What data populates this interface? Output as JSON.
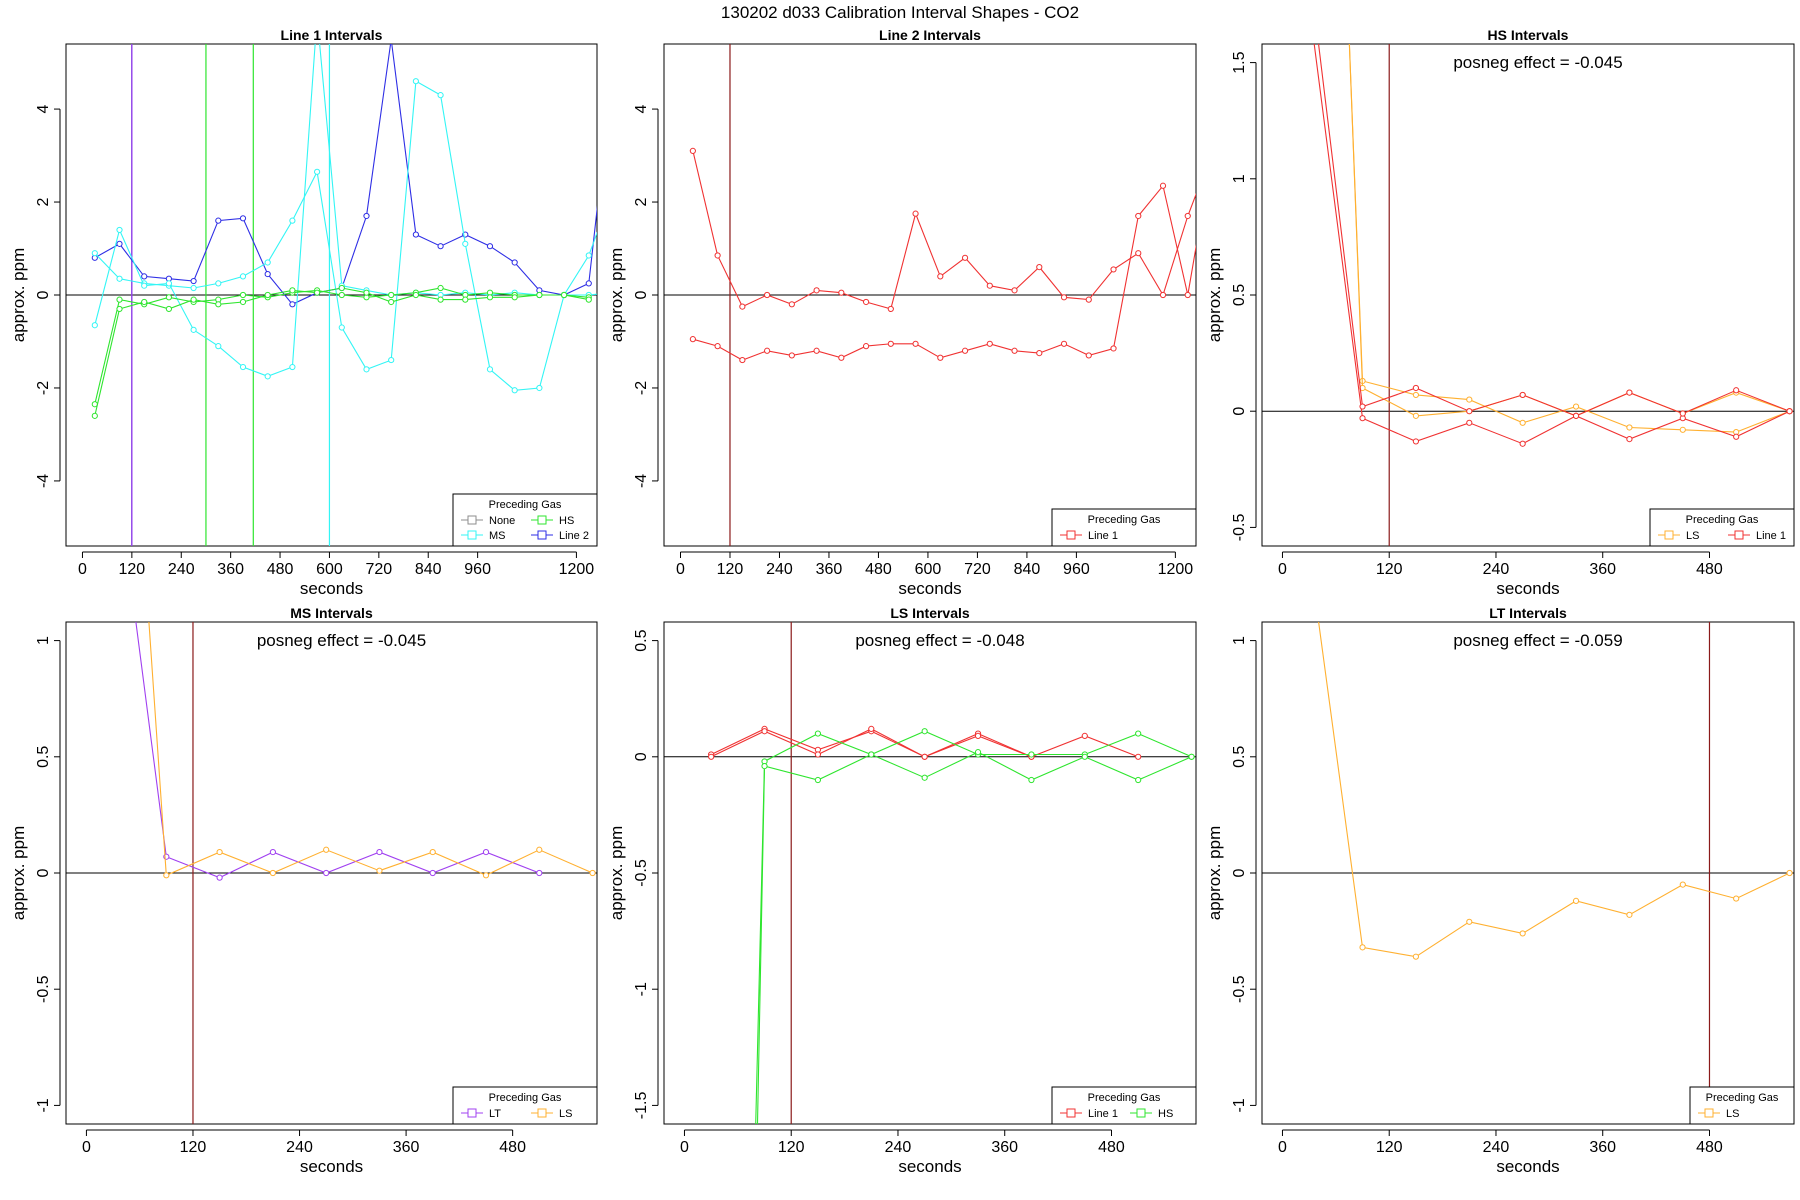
{
  "figure_title": "130202  d033   Calibration Interval Shapes - CO2",
  "legend_title": "Preceding Gas",
  "colors": {
    "None": "#8c8c8c",
    "HS": "#2ee52e",
    "MS": "#33f5f5",
    "Line 2": "#2e2ee5",
    "Line 1": "#f03232",
    "LS": "#ffb030",
    "LT": "#a040f0",
    "marker_vline": "#8b1a1a",
    "zero_line": "#000000"
  },
  "chart_data": [
    {
      "type": "line",
      "title": "Line 1 Intervals",
      "xlabel": "seconds",
      "ylabel": "approx. ppm",
      "xlim": [
        -40,
        1250
      ],
      "ylim": [
        -5.4,
        5.4
      ],
      "xticks": [
        0,
        120,
        240,
        360,
        480,
        600,
        720,
        840,
        960,
        1200
      ],
      "yticks": [
        -4,
        -2,
        0,
        2,
        4
      ],
      "annotation": "",
      "legend": {
        "entries": [
          "None",
          "HS",
          "MS",
          "Line 2"
        ],
        "columns": 2
      },
      "vlines": [
        {
          "x": 120,
          "color": "#8c8c8c"
        },
        {
          "x": 120,
          "color": "#2e2ee5"
        },
        {
          "x": 120,
          "color": "#a040f0"
        },
        {
          "x": 300,
          "color": "#2ee52e"
        },
        {
          "x": 415,
          "color": "#2ee52e"
        },
        {
          "x": 600,
          "color": "#33f5f5"
        }
      ],
      "series": [
        {
          "name": "Line 2",
          "color": "#2e2ee5",
          "x": [
            30,
            90,
            150,
            210,
            270,
            330,
            390,
            450,
            510,
            570,
            630,
            690,
            750,
            810,
            870,
            930,
            990,
            1050,
            1110,
            1170,
            1230,
            1290
          ],
          "y": [
            0.8,
            1.1,
            0.4,
            0.35,
            0.3,
            1.6,
            1.65,
            0.45,
            -0.2,
            0.05,
            0.15,
            1.7,
            5.5,
            1.3,
            1.05,
            1.3,
            1.05,
            0.7,
            0.1,
            0.0,
            0.25,
            5.0
          ]
        },
        {
          "name": "MS",
          "color": "#33f5f5",
          "x": [
            30,
            90,
            150,
            210,
            270,
            330,
            390,
            450,
            510,
            570,
            630,
            690,
            750,
            810,
            870,
            930,
            990,
            1050,
            1110,
            1170,
            1230,
            1290
          ],
          "y": [
            0.9,
            0.35,
            0.25,
            0.2,
            0.15,
            0.25,
            0.4,
            0.7,
            1.6,
            2.65,
            -0.7,
            -1.6,
            -1.4,
            4.6,
            4.3,
            1.1,
            -1.6,
            -2.05,
            -2.0,
            0.0,
            0.85,
            2.3
          ]
        },
        {
          "name": "MS",
          "color": "#33f5f5",
          "x": [
            30,
            90,
            150,
            210,
            270,
            330,
            390,
            450,
            510,
            570,
            630,
            690,
            750,
            810,
            870,
            930,
            990,
            1050,
            1110,
            1170,
            1230,
            1290
          ],
          "y": [
            -0.65,
            1.4,
            0.2,
            0.25,
            -0.75,
            -1.1,
            -1.55,
            -1.75,
            -1.55,
            6.0,
            0.2,
            0.1,
            0.0,
            0.05,
            0.0,
            0.05,
            0.0,
            0.05,
            0.0,
            0.0,
            0.0,
            0.05
          ]
        },
        {
          "name": "HS",
          "color": "#2ee52e",
          "x": [
            30,
            90,
            150,
            210,
            270,
            330,
            390,
            450,
            510,
            570,
            630,
            690,
            750,
            810,
            870,
            930,
            990,
            1050,
            1110,
            1170,
            1230
          ],
          "y": [
            -2.35,
            -0.1,
            -0.2,
            -0.05,
            -0.15,
            -0.1,
            0.0,
            -0.05,
            0.05,
            0.1,
            0.0,
            -0.05,
            0.0,
            0.05,
            0.15,
            0.0,
            0.05,
            0.0,
            0.0,
            0.0,
            -0.05
          ]
        },
        {
          "name": "HS",
          "color": "#2ee52e",
          "x": [
            30,
            90,
            150,
            210,
            270,
            330,
            390,
            450,
            510,
            570,
            630,
            690,
            750,
            810,
            870,
            930,
            990,
            1050,
            1110,
            1170,
            1230
          ],
          "y": [
            -2.6,
            -0.3,
            -0.15,
            -0.3,
            -0.1,
            -0.2,
            -0.15,
            0.0,
            0.1,
            0.05,
            0.15,
            0.05,
            -0.15,
            0.0,
            -0.1,
            -0.1,
            -0.05,
            -0.05,
            0.0,
            0.0,
            -0.1
          ]
        }
      ]
    },
    {
      "type": "line",
      "title": "Line 2 Intervals",
      "xlabel": "seconds",
      "ylabel": "approx. ppm",
      "xlim": [
        -40,
        1250
      ],
      "ylim": [
        -5.4,
        5.4
      ],
      "xticks": [
        0,
        120,
        240,
        360,
        480,
        600,
        720,
        840,
        960,
        1200
      ],
      "yticks": [
        -4,
        -2,
        0,
        2,
        4
      ],
      "annotation": "",
      "legend": {
        "entries": [
          "Line 1"
        ],
        "columns": 1
      },
      "vlines": [
        {
          "x": 120,
          "color": "#8b1a1a"
        }
      ],
      "series": [
        {
          "name": "Line 1",
          "color": "#f03232",
          "x": [
            30,
            90,
            150,
            210,
            270,
            330,
            390,
            450,
            510,
            570,
            630,
            690,
            750,
            810,
            870,
            930,
            990,
            1050,
            1110,
            1170,
            1230,
            1290
          ],
          "y": [
            3.1,
            0.85,
            -0.25,
            0.0,
            -0.2,
            0.1,
            0.05,
            -0.15,
            -0.3,
            1.75,
            0.4,
            0.8,
            0.2,
            0.1,
            0.6,
            -0.05,
            -0.1,
            0.55,
            0.9,
            0.0,
            1.7,
            3.1
          ]
        },
        {
          "name": "Line 1",
          "color": "#f03232",
          "x": [
            30,
            90,
            150,
            210,
            270,
            330,
            390,
            450,
            510,
            570,
            630,
            690,
            750,
            810,
            870,
            930,
            990,
            1050,
            1110,
            1170,
            1230,
            1290
          ],
          "y": [
            -0.95,
            -1.1,
            -1.4,
            -1.2,
            -1.3,
            -1.2,
            -1.35,
            -1.1,
            -1.05,
            -1.05,
            -1.35,
            -1.2,
            -1.05,
            -1.2,
            -1.25,
            -1.05,
            -1.3,
            -1.15,
            1.7,
            2.35,
            0.0,
            3.1
          ]
        }
      ]
    },
    {
      "type": "line",
      "title": "HS Intervals",
      "xlabel": "seconds",
      "ylabel": "approx. ppm",
      "xlim": [
        -23,
        575
      ],
      "ylim": [
        -0.58,
        1.58
      ],
      "xticks": [
        0,
        120,
        240,
        360,
        480
      ],
      "yticks": [
        -0.5,
        0.0,
        0.5,
        1.0,
        1.5
      ],
      "annotation": "posneg effect = -0.045",
      "legend": {
        "entries": [
          "LS",
          "Line 1"
        ],
        "columns": 2
      },
      "vlines": [
        {
          "x": 120,
          "color": "#8b1a1a"
        }
      ],
      "series": [
        {
          "name": "LS",
          "color": "#ffb030",
          "x": [
            75,
            90,
            150,
            210,
            270,
            330,
            390,
            450,
            510,
            570
          ],
          "y": [
            1.6,
            0.13,
            0.07,
            0.05,
            -0.05,
            0.02,
            -0.07,
            -0.08,
            -0.09,
            0.0
          ]
        },
        {
          "name": "LS",
          "color": "#ffb030",
          "x": [
            75,
            90,
            150,
            210,
            270,
            330,
            390,
            450,
            510,
            570
          ],
          "y": [
            1.6,
            0.1,
            -0.02,
            0.0,
            0.07,
            -0.02,
            0.08,
            -0.01,
            0.08,
            0.0
          ]
        },
        {
          "name": "Line 1",
          "color": "#f03232",
          "x": [
            35,
            90,
            150,
            210,
            270,
            330,
            390,
            450,
            510,
            570
          ],
          "y": [
            1.6,
            -0.03,
            -0.13,
            -0.05,
            -0.14,
            -0.02,
            -0.12,
            -0.03,
            -0.11,
            0.0
          ]
        },
        {
          "name": "Line 1",
          "color": "#f03232",
          "x": [
            40,
            90,
            150,
            210,
            270,
            330,
            390,
            450,
            510,
            570
          ],
          "y": [
            1.6,
            0.02,
            0.1,
            0.0,
            0.07,
            -0.02,
            0.08,
            -0.01,
            0.09,
            0.0
          ]
        }
      ]
    },
    {
      "type": "line",
      "title": "MS Intervals",
      "xlabel": "seconds",
      "ylabel": "approx. ppm",
      "xlim": [
        -23,
        575
      ],
      "ylim": [
        -1.08,
        1.08
      ],
      "xticks": [
        0,
        120,
        240,
        360,
        480
      ],
      "yticks": [
        -1.0,
        -0.5,
        0.0,
        0.5,
        1.0
      ],
      "annotation": "posneg effect = -0.045",
      "legend": {
        "entries": [
          "LT",
          "LS"
        ],
        "columns": 2
      },
      "vlines": [
        {
          "x": 120,
          "color": "#8b1a1a"
        }
      ],
      "series": [
        {
          "name": "LT",
          "color": "#a040f0",
          "x": [
            55,
            90,
            150,
            210,
            270,
            330,
            390,
            450,
            510
          ],
          "y": [
            1.1,
            0.07,
            -0.02,
            0.09,
            0.0,
            0.09,
            0.0,
            0.09,
            0.0
          ]
        },
        {
          "name": "LS",
          "color": "#ffb030",
          "x": [
            70,
            90,
            150,
            210,
            270,
            330,
            390,
            450,
            510,
            570
          ],
          "y": [
            1.1,
            -0.01,
            0.09,
            0.0,
            0.1,
            0.01,
            0.09,
            -0.01,
            0.1,
            0.0
          ]
        }
      ]
    },
    {
      "type": "line",
      "title": "LS Intervals",
      "xlabel": "seconds",
      "ylabel": "approx. ppm",
      "xlim": [
        -23,
        575
      ],
      "ylim": [
        -1.58,
        0.58
      ],
      "xticks": [
        0,
        120,
        240,
        360,
        480
      ],
      "yticks": [
        -1.5,
        -1.0,
        -0.5,
        0.0,
        0.5
      ],
      "annotation": "posneg effect = -0.048",
      "legend": {
        "entries": [
          "Line 1",
          "HS"
        ],
        "columns": 2
      },
      "vlines": [
        {
          "x": 120,
          "color": "#8b1a1a"
        }
      ],
      "series": [
        {
          "name": "Line 1",
          "color": "#f03232",
          "x": [
            30,
            90,
            150,
            210,
            270,
            330,
            390,
            450,
            510
          ],
          "y": [
            0.01,
            0.12,
            0.03,
            0.11,
            0.0,
            0.1,
            0.0,
            0.09,
            0.0
          ]
        },
        {
          "name": "Line 1",
          "color": "#f03232",
          "x": [
            30,
            90,
            150,
            210,
            270,
            330,
            390
          ],
          "y": [
            0.0,
            0.11,
            0.01,
            0.12,
            0.0,
            0.09,
            0.0
          ]
        },
        {
          "name": "HS",
          "color": "#2ee52e",
          "x": [
            80,
            90,
            150,
            210,
            270,
            330,
            390,
            450,
            510,
            570
          ],
          "y": [
            -1.6,
            -0.02,
            0.1,
            0.01,
            0.11,
            0.01,
            0.01,
            0.01,
            0.1,
            0.0
          ]
        },
        {
          "name": "HS",
          "color": "#2ee52e",
          "x": [
            82,
            90,
            150,
            210,
            270,
            330,
            390,
            450,
            510,
            570
          ],
          "y": [
            -1.6,
            -0.04,
            -0.1,
            0.01,
            -0.09,
            0.02,
            -0.1,
            0.0,
            -0.1,
            0.0
          ]
        }
      ]
    },
    {
      "type": "line",
      "title": "LT Intervals",
      "xlabel": "seconds",
      "ylabel": "approx. ppm",
      "xlim": [
        -23,
        575
      ],
      "ylim": [
        -1.08,
        1.08
      ],
      "xticks": [
        0,
        120,
        240,
        360,
        480
      ],
      "yticks": [
        -1.0,
        -0.5,
        0.0,
        0.5,
        1.0
      ],
      "annotation": "posneg effect = -0.059",
      "legend": {
        "entries": [
          "LS"
        ],
        "columns": 1
      },
      "vlines": [
        {
          "x": 480,
          "color": "#8b1a1a"
        }
      ],
      "series": [
        {
          "name": "LS",
          "color": "#ffb030",
          "x": [
            40,
            90,
            150,
            210,
            270,
            330,
            390,
            450,
            510,
            570
          ],
          "y": [
            1.1,
            -0.32,
            -0.36,
            -0.21,
            -0.26,
            -0.12,
            -0.18,
            -0.05,
            -0.11,
            0.0
          ]
        }
      ]
    }
  ]
}
